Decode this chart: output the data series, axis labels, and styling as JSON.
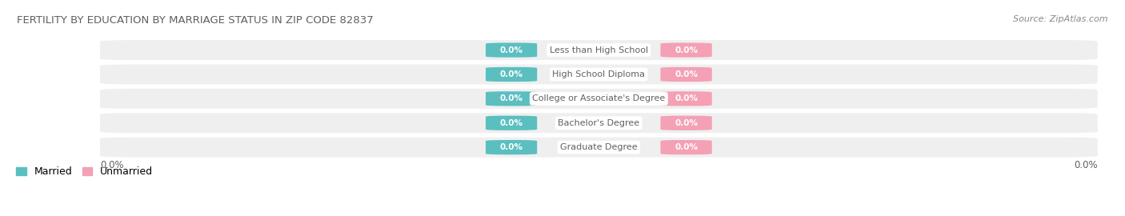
{
  "title": "FERTILITY BY EDUCATION BY MARRIAGE STATUS IN ZIP CODE 82837",
  "source": "Source: ZipAtlas.com",
  "categories": [
    "Less than High School",
    "High School Diploma",
    "College or Associate's Degree",
    "Bachelor's Degree",
    "Graduate Degree"
  ],
  "married_values": [
    0.0,
    0.0,
    0.0,
    0.0,
    0.0
  ],
  "unmarried_values": [
    0.0,
    0.0,
    0.0,
    0.0,
    0.0
  ],
  "married_color": "#5bbfc0",
  "unmarried_color": "#f4a0b5",
  "row_bg_color": "#efefef",
  "title_color": "#606060",
  "label_color": "#606060",
  "value_label_married": "0.0%",
  "value_label_unmarried": "0.0%",
  "x_left_label": "0.0%",
  "x_right_label": "0.0%",
  "legend_married": "Married",
  "legend_unmarried": "Unmarried",
  "figwidth": 14.06,
  "figheight": 2.7,
  "dpi": 100
}
